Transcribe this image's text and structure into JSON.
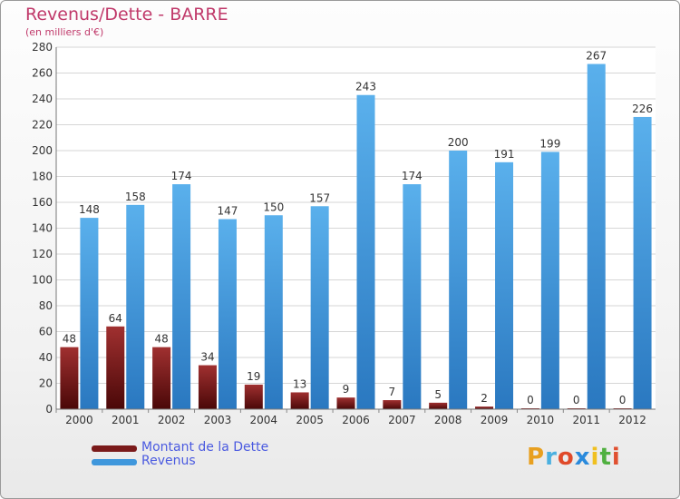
{
  "chart_data": {
    "type": "bar",
    "title": "Revenus/Dette - BARRE",
    "subtitle": "(en milliers d'€)",
    "categories": [
      "2000",
      "2001",
      "2002",
      "2003",
      "2004",
      "2005",
      "2006",
      "2007",
      "2008",
      "2009",
      "2010",
      "2011",
      "2012"
    ],
    "series": [
      {
        "name": "Montant de la Dette",
        "color": "#7a1a1a",
        "values": [
          48,
          64,
          48,
          34,
          19,
          13,
          9,
          7,
          5,
          2,
          0,
          0,
          0
        ]
      },
      {
        "name": "Revenus",
        "color": "#3f97dc",
        "values": [
          148,
          158,
          174,
          147,
          150,
          157,
          243,
          174,
          200,
          191,
          199,
          267,
          226
        ]
      }
    ],
    "ylim": [
      0,
      280
    ],
    "yticks": [
      0,
      20,
      40,
      60,
      80,
      100,
      120,
      140,
      160,
      180,
      200,
      220,
      240,
      260,
      280
    ],
    "grid": true,
    "legend": "bottom-left"
  },
  "branding": {
    "logo_letters": [
      "P",
      "r",
      "o",
      "x",
      "i",
      "t",
      "i"
    ],
    "logo_colors": [
      "#e8a020",
      "#4bb0e0",
      "#e04a2a",
      "#2a8adc",
      "#f0c020",
      "#50b040",
      "#e05030"
    ]
  }
}
